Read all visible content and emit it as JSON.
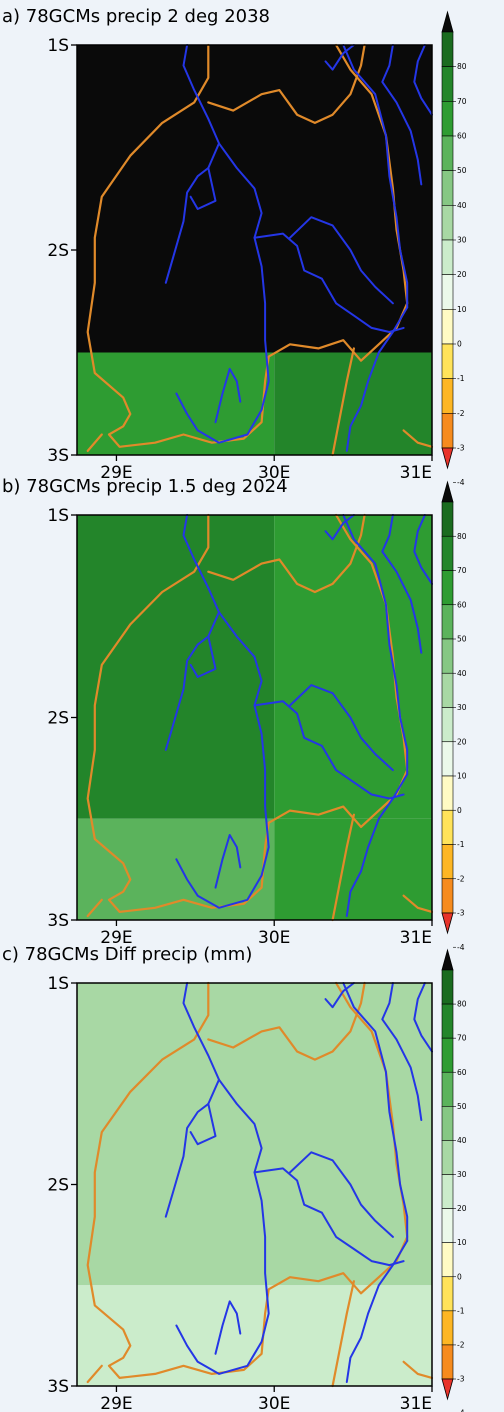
{
  "chart_data": [
    {
      "type": "heatmap",
      "title": "a) 78GCMs precip 2 deg 2038",
      "x_ticks": [
        "29E",
        "30E",
        "31E"
      ],
      "y_ticks": [
        "1S",
        "2S",
        "3S"
      ],
      "xlim": [
        28.75,
        31
      ],
      "ylim": [
        -3,
        -1
      ],
      "cells": [
        {
          "lon": [
            28.75,
            31
          ],
          "lat": [
            -2.5,
            -1
          ],
          "value": 85
        },
        {
          "lon": [
            28.75,
            30
          ],
          "lat": [
            -3,
            -2.5
          ],
          "value": 55
        },
        {
          "lon": [
            30,
            31
          ],
          "lat": [
            -3,
            -2.5
          ],
          "value": 65
        }
      ]
    },
    {
      "type": "heatmap",
      "title": "b) 78GCMs precip 1.5 deg 2024",
      "x_ticks": [
        "29E",
        "30E",
        "31E"
      ],
      "y_ticks": [
        "1S",
        "2S",
        "3S"
      ],
      "xlim": [
        28.75,
        31
      ],
      "ylim": [
        -3,
        -1
      ],
      "cells": [
        {
          "lon": [
            28.75,
            30
          ],
          "lat": [
            -2.5,
            -1
          ],
          "value": 65
        },
        {
          "lon": [
            30,
            31
          ],
          "lat": [
            -2.5,
            -1
          ],
          "value": 55
        },
        {
          "lon": [
            28.75,
            30
          ],
          "lat": [
            -3,
            -2.5
          ],
          "value": 45
        },
        {
          "lon": [
            30,
            31
          ],
          "lat": [
            -3,
            -2.5
          ],
          "value": 55
        }
      ]
    },
    {
      "type": "heatmap",
      "title": "c) 78GCMs Diff precip (mm)",
      "x_ticks": [
        "29E",
        "30E",
        "31E"
      ],
      "y_ticks": [
        "1S",
        "2S",
        "3S"
      ],
      "xlim": [
        28.75,
        31
      ],
      "ylim": [
        -3,
        -1
      ],
      "cells": [
        {
          "lon": [
            28.75,
            31
          ],
          "lat": [
            -2.5,
            -1
          ],
          "value": 25
        },
        {
          "lon": [
            28.75,
            31
          ],
          "lat": [
            -3,
            -2.5
          ],
          "value": 15
        }
      ]
    }
  ],
  "colorbar": {
    "labels": [
      "80",
      "70",
      "60",
      "50",
      "40",
      "30",
      "20",
      "10",
      "0",
      "-1",
      "-2",
      "-3",
      "-4"
    ],
    "colors": [
      "#0a0a0a",
      "#1a6b1f",
      "#23852a",
      "#2e9c32",
      "#5bb35c",
      "#86c784",
      "#a8d8a4",
      "#cbeccb",
      "#ebf9ea",
      "#fffbc4",
      "#ffe35a",
      "#fdb624",
      "#f68b1e",
      "#e8332a"
    ]
  }
}
